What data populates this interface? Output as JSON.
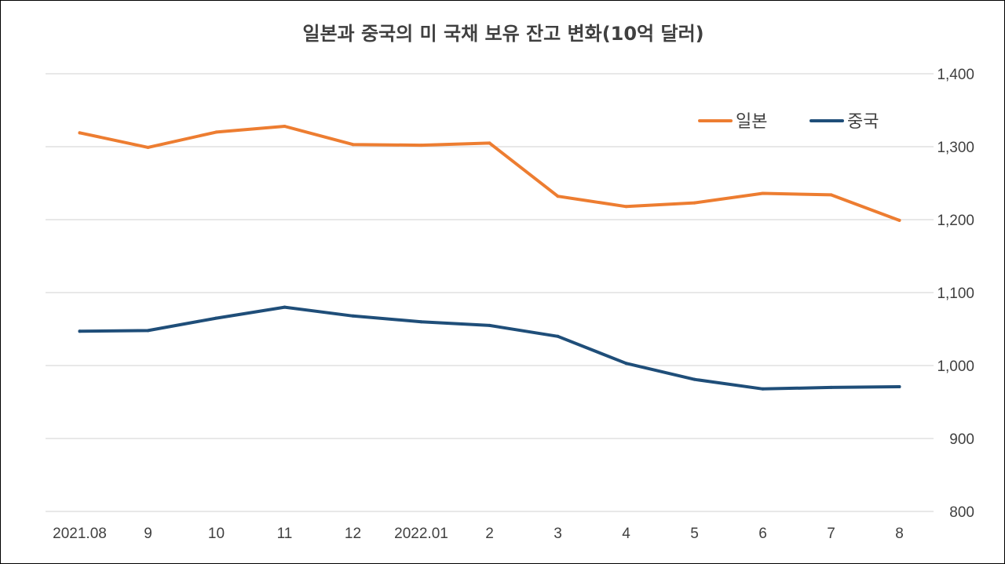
{
  "chart_data": {
    "type": "line",
    "title": "일본과 중국의 미 국채 보유 잔고 변화(10억 달러)",
    "xlabel": "",
    "ylabel": "",
    "categories": [
      "2021.08",
      "9",
      "10",
      "11",
      "12",
      "2022.01",
      "2",
      "3",
      "4",
      "5",
      "6",
      "7",
      "8"
    ],
    "ylim": [
      800,
      1400
    ],
    "yticks": [
      "800",
      "900",
      "1,000",
      "1,100",
      "1,200",
      "1,300",
      "1,400"
    ],
    "ytick_values": [
      800,
      900,
      1000,
      1100,
      1200,
      1300,
      1400
    ],
    "grid": true,
    "y_axis_side": "right",
    "legend_position": "top-right",
    "series": [
      {
        "name": "일본",
        "color": "#ED7D31",
        "values": [
          1319,
          1299,
          1320,
          1328,
          1303,
          1302,
          1305,
          1232,
          1218,
          1223,
          1236,
          1234,
          1199
        ]
      },
      {
        "name": "중국",
        "color": "#1F4E79",
        "values": [
          1047,
          1048,
          1065,
          1080,
          1068,
          1060,
          1055,
          1040,
          1003,
          981,
          968,
          970,
          971
        ]
      }
    ]
  }
}
